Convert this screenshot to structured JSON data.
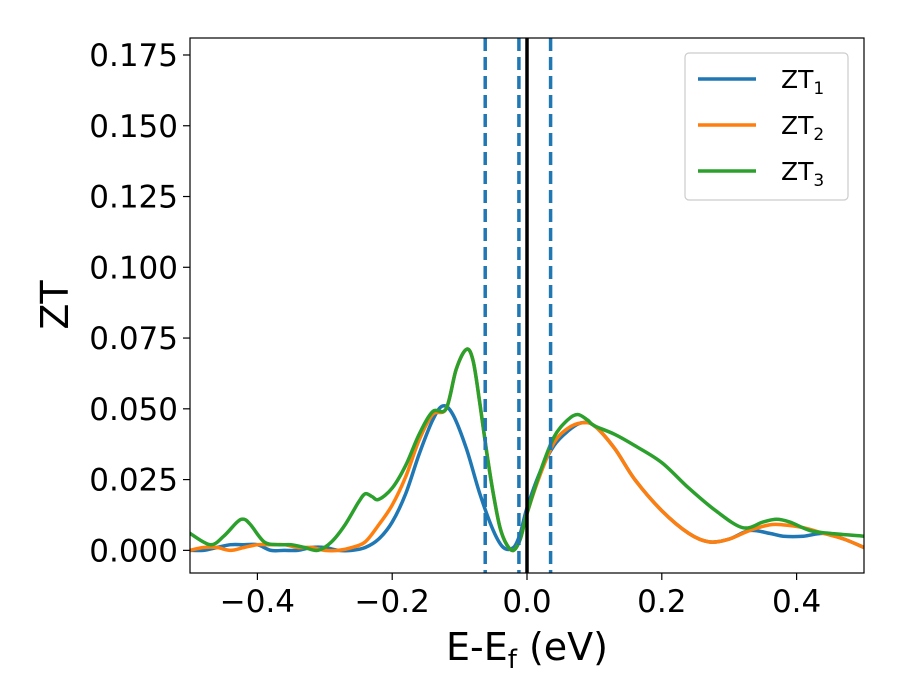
{
  "chart_data": {
    "type": "line",
    "xlabel": "E-E",
    "xlabel_sub": "f",
    "xlabel_unit": " (eV)",
    "ylabel": "ZT",
    "xlim": [
      -0.5,
      0.5
    ],
    "ylim": [
      -0.008,
      0.181
    ],
    "xticks": [
      -0.4,
      -0.2,
      0.0,
      0.2,
      0.4
    ],
    "xtick_labels": [
      "−0.4",
      "−0.2",
      "0.0",
      "0.2",
      "0.4"
    ],
    "yticks": [
      0.0,
      0.025,
      0.05,
      0.075,
      0.1,
      0.125,
      0.15,
      0.175
    ],
    "ytick_labels": [
      "0.000",
      "0.025",
      "0.050",
      "0.075",
      "0.100",
      "0.125",
      "0.150",
      "0.175"
    ],
    "grid": false,
    "legend_position": "top-right",
    "vlines": [
      {
        "x": -0.062,
        "style": "dashed",
        "color": "#1f77b4"
      },
      {
        "x": -0.012,
        "style": "dashed",
        "color": "#1f77b4"
      },
      {
        "x": 0.0,
        "style": "solid",
        "color": "#000000"
      },
      {
        "x": 0.035,
        "style": "dashed",
        "color": "#1f77b4"
      }
    ],
    "series": [
      {
        "name": "ZT",
        "sub": "1",
        "color": "#1f77b4",
        "points": [
          [
            -0.5,
            0.0
          ],
          [
            -0.48,
            0.0
          ],
          [
            -0.46,
            0.001
          ],
          [
            -0.44,
            0.002
          ],
          [
            -0.42,
            0.002
          ],
          [
            -0.4,
            0.002
          ],
          [
            -0.38,
            0.0
          ],
          [
            -0.36,
            0.0
          ],
          [
            -0.34,
            0.0
          ],
          [
            -0.32,
            0.001
          ],
          [
            -0.3,
            0.001
          ],
          [
            -0.28,
            0.0
          ],
          [
            -0.26,
            0.0
          ],
          [
            -0.24,
            0.001
          ],
          [
            -0.22,
            0.004
          ],
          [
            -0.2,
            0.01
          ],
          [
            -0.18,
            0.02
          ],
          [
            -0.16,
            0.034
          ],
          [
            -0.14,
            0.046
          ],
          [
            -0.125,
            0.051
          ],
          [
            -0.11,
            0.048
          ],
          [
            -0.09,
            0.036
          ],
          [
            -0.07,
            0.02
          ],
          [
            -0.05,
            0.007
          ],
          [
            -0.035,
            0.001
          ],
          [
            -0.02,
            0.001
          ],
          [
            -0.01,
            0.006
          ],
          [
            0.0,
            0.015
          ],
          [
            0.02,
            0.028
          ],
          [
            0.04,
            0.037
          ],
          [
            0.06,
            0.042
          ],
          [
            0.08,
            0.045
          ],
          [
            0.1,
            0.044
          ],
          [
            0.13,
            0.036
          ],
          [
            0.16,
            0.025
          ],
          [
            0.2,
            0.014
          ],
          [
            0.24,
            0.006
          ],
          [
            0.27,
            0.003
          ],
          [
            0.3,
            0.004
          ],
          [
            0.33,
            0.007
          ],
          [
            0.36,
            0.006
          ],
          [
            0.38,
            0.005
          ],
          [
            0.41,
            0.005
          ],
          [
            0.44,
            0.006
          ],
          [
            0.47,
            0.004
          ],
          [
            0.5,
            0.001
          ]
        ]
      },
      {
        "name": "ZT",
        "sub": "2",
        "color": "#ff7f0e",
        "points": [
          [
            -0.5,
            0.0
          ],
          [
            -0.48,
            0.001
          ],
          [
            -0.46,
            0.001
          ],
          [
            -0.44,
            0.0
          ],
          [
            -0.42,
            0.001
          ],
          [
            -0.4,
            0.002
          ],
          [
            -0.38,
            0.002
          ],
          [
            -0.36,
            0.002
          ],
          [
            -0.34,
            0.001
          ],
          [
            -0.32,
            0.001
          ],
          [
            -0.3,
            0.0
          ],
          [
            -0.28,
            0.0
          ],
          [
            -0.26,
            0.001
          ],
          [
            -0.24,
            0.003
          ],
          [
            -0.22,
            0.009
          ],
          [
            -0.2,
            0.016
          ],
          [
            -0.18,
            0.026
          ],
          [
            -0.16,
            0.039
          ],
          [
            -0.14,
            0.048
          ],
          [
            -0.12,
            0.05
          ],
          [
            -0.105,
            0.064
          ],
          [
            -0.09,
            0.071
          ],
          [
            -0.08,
            0.067
          ],
          [
            -0.07,
            0.052
          ],
          [
            -0.06,
            0.035
          ],
          [
            -0.05,
            0.02
          ],
          [
            -0.04,
            0.008
          ],
          [
            -0.03,
            0.002
          ],
          [
            -0.02,
            0.0
          ],
          [
            -0.01,
            0.004
          ],
          [
            0.0,
            0.013
          ],
          [
            0.02,
            0.027
          ],
          [
            0.04,
            0.038
          ],
          [
            0.06,
            0.043
          ],
          [
            0.08,
            0.045
          ],
          [
            0.1,
            0.044
          ],
          [
            0.13,
            0.036
          ],
          [
            0.16,
            0.025
          ],
          [
            0.2,
            0.014
          ],
          [
            0.24,
            0.006
          ],
          [
            0.27,
            0.003
          ],
          [
            0.3,
            0.004
          ],
          [
            0.33,
            0.007
          ],
          [
            0.36,
            0.009
          ],
          [
            0.38,
            0.009
          ],
          [
            0.41,
            0.008
          ],
          [
            0.44,
            0.006
          ],
          [
            0.47,
            0.004
          ],
          [
            0.5,
            0.001
          ]
        ]
      },
      {
        "name": "ZT",
        "sub": "3",
        "color": "#2ca02c",
        "points": [
          [
            -0.5,
            0.006
          ],
          [
            -0.47,
            0.002
          ],
          [
            -0.45,
            0.005
          ],
          [
            -0.43,
            0.01
          ],
          [
            -0.42,
            0.011
          ],
          [
            -0.41,
            0.009
          ],
          [
            -0.39,
            0.003
          ],
          [
            -0.37,
            0.002
          ],
          [
            -0.35,
            0.002
          ],
          [
            -0.33,
            0.001
          ],
          [
            -0.31,
            0.0
          ],
          [
            -0.29,
            0.003
          ],
          [
            -0.27,
            0.009
          ],
          [
            -0.25,
            0.017
          ],
          [
            -0.24,
            0.02
          ],
          [
            -0.23,
            0.019
          ],
          [
            -0.22,
            0.018
          ],
          [
            -0.2,
            0.022
          ],
          [
            -0.18,
            0.03
          ],
          [
            -0.16,
            0.041
          ],
          [
            -0.14,
            0.049
          ],
          [
            -0.12,
            0.05
          ],
          [
            -0.105,
            0.064
          ],
          [
            -0.09,
            0.071
          ],
          [
            -0.08,
            0.067
          ],
          [
            -0.07,
            0.052
          ],
          [
            -0.06,
            0.035
          ],
          [
            -0.05,
            0.02
          ],
          [
            -0.04,
            0.008
          ],
          [
            -0.03,
            0.002
          ],
          [
            -0.02,
            0.0
          ],
          [
            -0.01,
            0.004
          ],
          [
            0.0,
            0.013
          ],
          [
            0.02,
            0.028
          ],
          [
            0.04,
            0.04
          ],
          [
            0.06,
            0.046
          ],
          [
            0.075,
            0.048
          ],
          [
            0.09,
            0.046
          ],
          [
            0.1,
            0.044
          ],
          [
            0.13,
            0.041
          ],
          [
            0.16,
            0.037
          ],
          [
            0.2,
            0.031
          ],
          [
            0.24,
            0.022
          ],
          [
            0.28,
            0.014
          ],
          [
            0.32,
            0.008
          ],
          [
            0.35,
            0.01
          ],
          [
            0.37,
            0.011
          ],
          [
            0.39,
            0.01
          ],
          [
            0.42,
            0.007
          ],
          [
            0.45,
            0.006
          ],
          [
            0.5,
            0.005
          ]
        ]
      }
    ]
  }
}
